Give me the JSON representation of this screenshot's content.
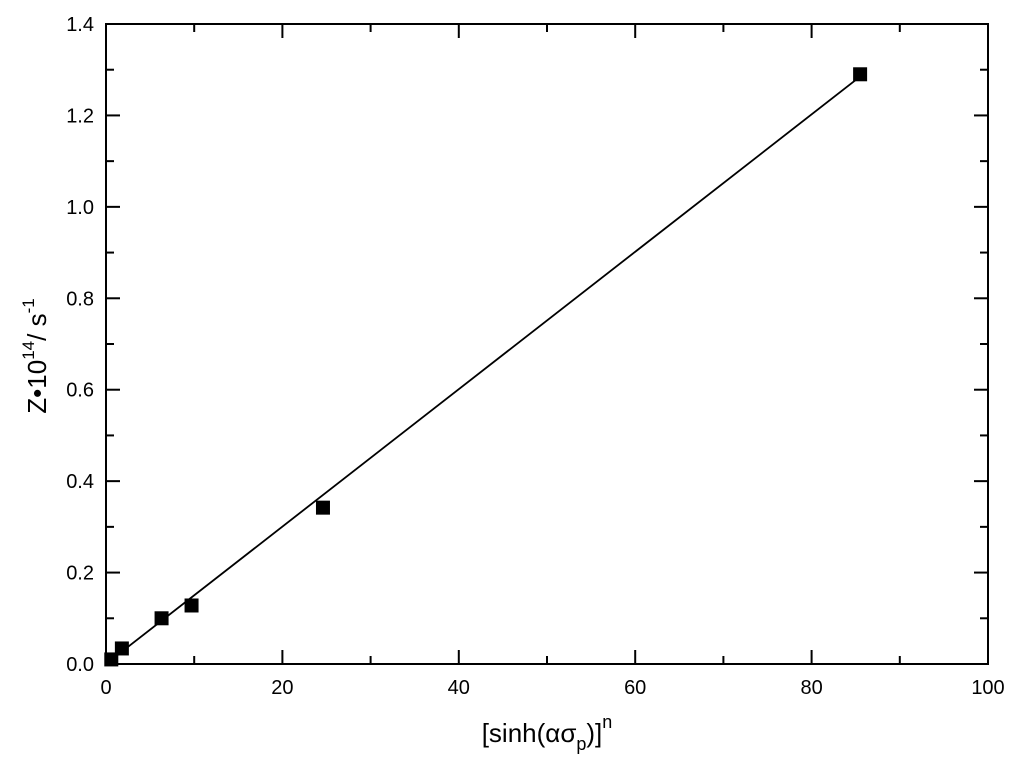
{
  "chart_data": {
    "type": "scatter",
    "xlabel": "[sinh(ασp)]n",
    "ylabel": "Z•1014/s-1",
    "xlabel_parts": {
      "prefix": "[sinh(",
      "symbols": "ασ",
      "subscript": "p",
      "suffix": ")]",
      "superscript": "n"
    },
    "ylabel_parts": {
      "base": "Z•10",
      "exp1": "14",
      "mid": "/ s",
      "exp2": "-1"
    },
    "xlim": [
      0,
      100
    ],
    "ylim": [
      0,
      1.4
    ],
    "x_ticks": [
      0,
      20,
      40,
      60,
      80,
      100
    ],
    "y_ticks": [
      0.0,
      0.2,
      0.4,
      0.6,
      0.8,
      1.0,
      1.2,
      1.4
    ],
    "x_tick_labels": [
      "0",
      "20",
      "40",
      "60",
      "80",
      "100"
    ],
    "y_tick_labels": [
      "0.0",
      "0.2",
      "0.4",
      "0.6",
      "0.8",
      "1.0",
      "1.2",
      "1.4"
    ],
    "grid": false,
    "series": [
      {
        "marker": "square",
        "color": "#000000",
        "x": [
          0.6,
          1.8,
          6.3,
          9.7,
          24.6,
          85.5
        ],
        "y": [
          0.01,
          0.034,
          0.1,
          0.128,
          0.342,
          1.29
        ]
      }
    ],
    "fit_line": {
      "color": "#000000",
      "x": [
        0,
        85.5
      ],
      "y": [
        0.0,
        1.285
      ]
    }
  }
}
